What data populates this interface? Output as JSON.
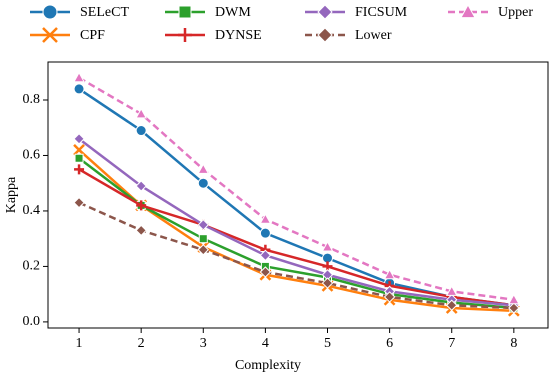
{
  "chart_data": {
    "type": "line",
    "x_label": "Complexity",
    "y_label": "Kappa",
    "x": [
      1,
      2,
      3,
      4,
      5,
      6,
      7,
      8
    ],
    "xlim": [
      0.5,
      8.55
    ],
    "xticks": [
      1,
      2,
      3,
      4,
      5,
      6,
      7,
      8
    ],
    "ylim": [
      -0.022,
      0.937
    ],
    "yticks": [
      {
        "value": 0,
        "label": "0.0"
      },
      0.2,
      0.4,
      0.6,
      0.8
    ],
    "grid": false,
    "legend": "top",
    "series": [
      {
        "name": "SELeCT",
        "color": "#1f77b4",
        "marker": "circle",
        "dash": false,
        "values": [
          0.84,
          0.69,
          0.5,
          0.32,
          0.23,
          0.14,
          0.09,
          0.06
        ]
      },
      {
        "name": "CPF",
        "color": "#ff7f0e",
        "marker": "x",
        "dash": false,
        "values": [
          0.62,
          0.42,
          0.27,
          0.17,
          0.13,
          0.08,
          0.05,
          0.04
        ]
      },
      {
        "name": "DWM",
        "color": "#2ca02c",
        "marker": "square",
        "dash": false,
        "values": [
          0.59,
          0.42,
          0.3,
          0.2,
          0.16,
          0.1,
          0.07,
          0.05
        ]
      },
      {
        "name": "DYNSE",
        "color": "#d62728",
        "marker": "plus",
        "dash": false,
        "values": [
          0.55,
          0.42,
          0.35,
          0.26,
          0.2,
          0.13,
          0.09,
          0.06
        ]
      },
      {
        "name": "FICSUM",
        "color": "#9467bd",
        "marker": "diamond",
        "dash": false,
        "values": [
          0.66,
          0.49,
          0.35,
          0.24,
          0.17,
          0.11,
          0.08,
          0.06
        ]
      },
      {
        "name": "Lower",
        "color": "#8c564b",
        "marker": "diamond",
        "dash": true,
        "values": [
          0.43,
          0.33,
          0.26,
          0.18,
          0.14,
          0.09,
          0.06,
          0.05
        ]
      },
      {
        "name": "Upper",
        "color": "#e377c2",
        "marker": "triangle",
        "dash": true,
        "values": [
          0.88,
          0.75,
          0.55,
          0.37,
          0.27,
          0.17,
          0.11,
          0.08
        ]
      }
    ]
  }
}
